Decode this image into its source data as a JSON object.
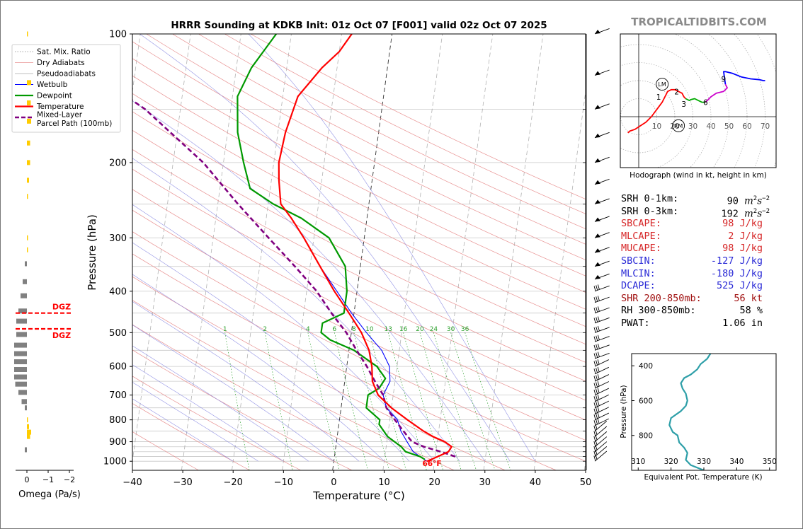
{
  "watermark": "TROPICALTIDBITS.COM",
  "chart_data": [
    {
      "type": "line",
      "name": "skew-t",
      "title": "HRRR Sounding at KDKB Init: 01z Oct 07 [F001] valid 02z Oct 07 2025",
      "xlabel": "Temperature (°C)",
      "ylabel": "Pressure (hPa)",
      "x_ticks": [
        -40,
        -30,
        -20,
        -10,
        0,
        10,
        20,
        30,
        40,
        50
      ],
      "y_ticks": [
        100,
        200,
        300,
        400,
        500,
        600,
        700,
        800,
        900,
        1000
      ],
      "xlim": [
        -40,
        50
      ],
      "ylim": [
        1050,
        100
      ],
      "y_scale": "log",
      "mixing_ratio_labels": [
        "1",
        "2",
        "4",
        "6",
        "8",
        "10",
        "13",
        "16",
        "20",
        "24",
        "30",
        "36"
      ],
      "surface_label": "66°F",
      "legend": {
        "placement": "top-left",
        "entries": [
          "Sat. Mix. Ratio",
          "Dry Adiabats",
          "Pseudoadiabats",
          "Wetbulb",
          "Dewpoint",
          "Temperature",
          "Mixed-Layer\nParcel Path (100mb)"
        ]
      },
      "series": [
        {
          "name": "Temperature",
          "color": "#ff0000",
          "points": [
            [
              18.5,
              1000
            ],
            [
              20.5,
              975
            ],
            [
              22.5,
              950
            ],
            [
              23,
              925
            ],
            [
              21.5,
              900
            ],
            [
              19,
              875
            ],
            [
              17,
              850
            ],
            [
              13.5,
              800
            ],
            [
              10,
              750
            ],
            [
              7,
              700
            ],
            [
              5.5,
              650
            ],
            [
              5,
              600
            ],
            [
              4,
              550
            ],
            [
              2,
              500
            ],
            [
              -1,
              450
            ],
            [
              -4.5,
              400
            ],
            [
              -8,
              350
            ],
            [
              -12,
              300
            ],
            [
              -15,
              270
            ],
            [
              -17.5,
              250
            ],
            [
              -18.5,
              220
            ],
            [
              -19,
              200
            ],
            [
              -18.5,
              170
            ],
            [
              -17,
              140
            ],
            [
              -13,
              120
            ],
            [
              -10,
              110
            ],
            [
              -8,
              100
            ]
          ]
        },
        {
          "name": "Dewpoint",
          "color": "#009900",
          "points": [
            [
              18,
              990
            ],
            [
              17,
              975
            ],
            [
              14,
              950
            ],
            [
              13,
              925
            ],
            [
              10,
              875
            ],
            [
              8,
              820
            ],
            [
              8,
              800
            ],
            [
              5,
              750
            ],
            [
              5,
              700
            ],
            [
              7,
              675
            ],
            [
              8,
              640
            ],
            [
              6,
              600
            ],
            [
              1,
              550
            ],
            [
              -4,
              520
            ],
            [
              -6,
              500
            ],
            [
              -6,
              475
            ],
            [
              -2,
              450
            ],
            [
              -2,
              400
            ],
            [
              -3,
              350
            ],
            [
              -7,
              300
            ],
            [
              -13,
              270
            ],
            [
              -19,
              250
            ],
            [
              -24,
              230
            ],
            [
              -26,
              200
            ],
            [
              -28,
              170
            ],
            [
              -29,
              140
            ],
            [
              -27,
              120
            ],
            [
              -23,
              100
            ]
          ]
        },
        {
          "name": "Wetbulb",
          "color": "#0000ff",
          "points": [
            [
              18.5,
              1000
            ],
            [
              17,
              975
            ],
            [
              15.5,
              950
            ],
            [
              14,
              900
            ],
            [
              12.5,
              850
            ],
            [
              11.5,
              800
            ],
            [
              9,
              750
            ],
            [
              8,
              700
            ],
            [
              9,
              650
            ],
            [
              8.5,
              600
            ],
            [
              6.5,
              550
            ],
            [
              3,
              500
            ],
            [
              -0.5,
              450
            ],
            [
              -4,
              400
            ],
            [
              -8,
              350
            ]
          ]
        },
        {
          "name": "Mixed-Layer Parcel Path (100mb)",
          "color": "#800080",
          "points": [
            [
              24,
              975
            ],
            [
              21,
              950
            ],
            [
              17.5,
              925
            ],
            [
              15,
              900
            ],
            [
              13,
              850
            ],
            [
              11,
              800
            ],
            [
              9,
              750
            ],
            [
              8,
              700
            ],
            [
              6,
              650
            ],
            [
              4,
              600
            ],
            [
              1.5,
              550
            ],
            [
              -1,
              500
            ],
            [
              -4.5,
              450
            ],
            [
              -8,
              400
            ],
            [
              -13,
              350
            ],
            [
              -19,
              300
            ],
            [
              -26,
              250
            ],
            [
              -34,
              200
            ],
            [
              -47,
              150
            ],
            [
              -60,
              120
            ],
            [
              -69,
              100
            ]
          ]
        }
      ]
    },
    {
      "type": "bar",
      "name": "omega",
      "xlabel": "Omega (Pa/s)",
      "x_ticks": [
        "0",
        "−1",
        "−2"
      ],
      "dgz_label": "DGZ",
      "dgz_pressures": [
        450,
        490
      ],
      "bars_pa_s": [
        [
          100,
          0.05
        ],
        [
          130,
          0.2
        ],
        [
          145,
          0.18
        ],
        [
          160,
          0.2
        ],
        [
          180,
          0.15
        ],
        [
          200,
          0.15
        ],
        [
          220,
          0.1
        ],
        [
          240,
          0.05
        ],
        [
          300,
          0.05
        ],
        [
          320,
          0.05
        ],
        [
          345,
          -0.1
        ],
        [
          380,
          -0.2
        ],
        [
          410,
          -0.3
        ],
        [
          445,
          -0.4
        ],
        [
          470,
          -0.5
        ],
        [
          505,
          -0.5
        ],
        [
          535,
          -0.6
        ],
        [
          560,
          -0.6
        ],
        [
          585,
          -0.6
        ],
        [
          610,
          -0.6
        ],
        [
          635,
          -0.6
        ],
        [
          660,
          -0.55
        ],
        [
          690,
          -0.4
        ],
        [
          725,
          -0.25
        ],
        [
          750,
          -0.1
        ],
        [
          800,
          0.05
        ],
        [
          830,
          0.1
        ],
        [
          855,
          0.2
        ],
        [
          875,
          0.15
        ],
        [
          940,
          -0.1
        ]
      ]
    },
    {
      "type": "line",
      "name": "hodograph",
      "xlabel": "Hodograph (wind in kt, height in km)",
      "ring_labels": [
        "10",
        "20",
        "30",
        "40",
        "50",
        "60",
        "70"
      ],
      "height_labels": [
        "1",
        "2",
        "3",
        "6",
        "9"
      ],
      "storm_motion_labels": [
        "LM",
        "RM"
      ],
      "segments": [
        {
          "color": "#ff0000",
          "points": [
            [
              -6,
              -9
            ],
            [
              -5,
              -8
            ],
            [
              -2,
              -7
            ],
            [
              1,
              -5
            ],
            [
              4,
              -3
            ],
            [
              7,
              0
            ],
            [
              10,
              4
            ],
            [
              13,
              8
            ],
            [
              15,
              12
            ],
            [
              16,
              14
            ],
            [
              18,
              15
            ],
            [
              20,
              15
            ],
            [
              22,
              14
            ],
            [
              24,
              13
            ],
            [
              25,
              11
            ],
            [
              26,
              10
            ]
          ]
        },
        {
          "color": "#00aa00",
          "points": [
            [
              26,
              10
            ],
            [
              28,
              9
            ],
            [
              29,
              9.5
            ],
            [
              31,
              10
            ],
            [
              33,
              9
            ],
            [
              35,
              8
            ],
            [
              37,
              8
            ]
          ]
        },
        {
          "color": "#cc00cc",
          "points": [
            [
              37,
              8
            ],
            [
              40,
              11
            ],
            [
              43,
              13
            ],
            [
              47,
              14
            ],
            [
              49,
              16
            ],
            [
              48,
              18
            ]
          ]
        },
        {
          "color": "#0000ff",
          "points": [
            [
              48,
              18
            ],
            [
              47,
              25
            ],
            [
              48,
              25
            ],
            [
              52,
              24
            ],
            [
              57,
              22
            ],
            [
              62,
              21
            ],
            [
              67,
              20.5
            ],
            [
              69,
              20
            ],
            [
              70,
              20
            ]
          ]
        }
      ],
      "labelled_points": [
        [
          11,
          11
        ],
        [
          21,
          14
        ],
        [
          25,
          7
        ],
        [
          37,
          8
        ],
        [
          47,
          21
        ]
      ],
      "storm_motions": [
        [
          13,
          18
        ],
        [
          22,
          -5
        ]
      ]
    },
    {
      "type": "line",
      "name": "theta-e",
      "xlabel": "Equivalent Pot. Temperature (K)",
      "ylabel": "Pressure (hPa)",
      "x_ticks": [
        "310",
        "320",
        "330",
        "340",
        "350"
      ],
      "y_ticks": [
        "400",
        "600",
        "800"
      ],
      "xlim": [
        308,
        352
      ],
      "ylim": [
        1000,
        330
      ],
      "series": [
        {
          "color": "#2e9fa8",
          "points": [
            [
              332,
              330
            ],
            [
              331,
              360
            ],
            [
              329,
              390
            ],
            [
              328,
              420
            ],
            [
              326,
              450
            ],
            [
              324,
              470
            ],
            [
              323,
              500
            ],
            [
              323.5,
              530
            ],
            [
              324.5,
              560
            ],
            [
              325,
              600
            ],
            [
              324.5,
              630
            ],
            [
              323,
              660
            ],
            [
              320,
              700
            ],
            [
              319.5,
              740
            ],
            [
              320.5,
              780
            ],
            [
              322,
              800
            ],
            [
              322.5,
              840
            ],
            [
              324,
              870
            ],
            [
              325,
              900
            ],
            [
              324.5,
              940
            ],
            [
              326,
              970
            ],
            [
              330,
              1000
            ]
          ]
        }
      ]
    }
  ],
  "stats": [
    {
      "label": "SRH 0-1km:",
      "value": "90",
      "unit_base": "m",
      "unit_exp": "2",
      "unit_rest": "s",
      "unit_exp2": "−2",
      "color": "#000000"
    },
    {
      "label": "SRH 0-3km:",
      "value": "192",
      "unit_base": "m",
      "unit_exp": "2",
      "unit_rest": "s",
      "unit_exp2": "−2",
      "color": "#000000"
    },
    {
      "label": "SBCAPE:",
      "value": "98 J/kg",
      "color": "#d62728"
    },
    {
      "label": "MLCAPE:",
      "value": "2 J/kg",
      "color": "#d62728"
    },
    {
      "label": "MUCAPE:",
      "value": "98 J/kg",
      "color": "#d62728"
    },
    {
      "label": "SBCIN:",
      "value": "-127 J/kg",
      "color": "#2a2ad6"
    },
    {
      "label": "MLCIN:",
      "value": "-180 J/kg",
      "color": "#2a2ad6"
    },
    {
      "label": "DCAPE:",
      "value": "525 J/kg",
      "color": "#2a2ad6"
    },
    {
      "label": "SHR 200-850mb:",
      "value": "56 kt",
      "color": "#a01010"
    },
    {
      "label": "RH 300-850mb:",
      "value": "58 %",
      "color": "#000000"
    },
    {
      "label": "PWAT:",
      "value": "1.06 in",
      "color": "#000000"
    }
  ]
}
